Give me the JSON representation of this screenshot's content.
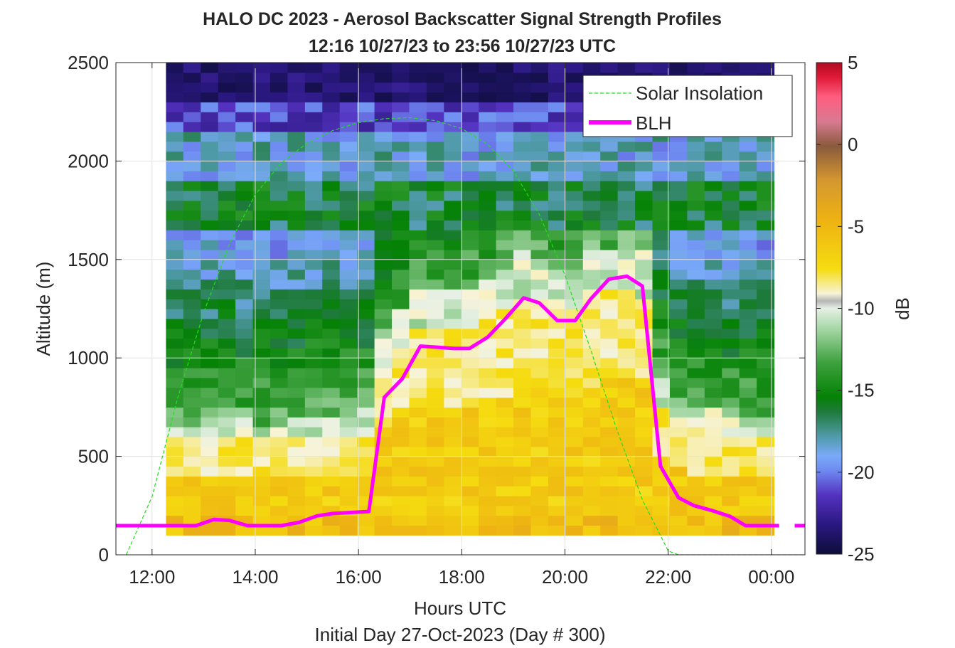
{
  "chart_data": {
    "type": "heatmap",
    "title": "HALO DC 2023 - Aerosol Backscatter Signal Strength Profiles",
    "subtitle": "12:16 10/27/23 to 23:56 10/27/23  UTC",
    "xlabel": "Hours UTC",
    "footnote": "Initial Day 27-Oct-2023 (Day # 300)",
    "ylabel": "Altitude (m)",
    "colorbar_label": "dB",
    "xlim": [
      11.3,
      24.65
    ],
    "ylim": [
      0,
      2500
    ],
    "x_ticks": [
      12,
      14,
      16,
      18,
      20,
      22,
      24
    ],
    "x_tick_labels": [
      "12:00",
      "14:00",
      "16:00",
      "18:00",
      "20:00",
      "22:00",
      "00:00"
    ],
    "y_ticks": [
      0,
      500,
      1000,
      1500,
      2000,
      2500
    ],
    "y_tick_labels": [
      "0",
      "500",
      "1000",
      "1500",
      "2000",
      "2500"
    ],
    "colorbar_ticks": [
      5,
      0,
      -5,
      -10,
      -15,
      -20,
      -25
    ],
    "colorbar_range": [
      -25,
      5
    ],
    "grid": true,
    "legend_position": "top-right",
    "heatmap": {
      "x_start": 12.27,
      "x_step": 0.3366,
      "y_start": 100,
      "y_step": 50,
      "rows_bottom_to_top": 48,
      "note": "signal strength (dB) per time/altitude cell"
    },
    "series": [
      {
        "name": "Solar Insolation",
        "style": "dashed",
        "color": "#22dd22",
        "x": [
          11.5,
          12.0,
          12.5,
          13.0,
          13.5,
          14.0,
          14.5,
          15.0,
          15.5,
          16.0,
          16.5,
          17.0,
          17.5,
          18.0,
          18.5,
          19.0,
          19.5,
          20.0,
          20.5,
          21.0,
          21.5,
          22.0,
          22.2,
          22.5,
          23.0,
          23.5,
          24.0,
          24.65
        ],
        "y": [
          0,
          295,
          800,
          1230,
          1580,
          1830,
          1990,
          2090,
          2155,
          2195,
          2215,
          2220,
          2205,
          2165,
          2085,
          1950,
          1730,
          1420,
          1040,
          640,
          280,
          20,
          0,
          0,
          0,
          0,
          0,
          0
        ]
      },
      {
        "name": "BLH",
        "style": "solid",
        "color": "#ff00ff",
        "x": [
          11.3,
          12.0,
          12.5,
          12.85,
          13.2,
          13.5,
          13.85,
          14.2,
          14.5,
          14.85,
          15.2,
          15.5,
          15.85,
          16.2,
          16.5,
          16.85,
          17.2,
          17.5,
          17.85,
          18.15,
          18.5,
          18.85,
          19.2,
          19.5,
          19.85,
          20.2,
          20.5,
          20.85,
          21.2,
          21.5,
          21.85,
          22.2,
          22.5,
          22.85,
          23.2,
          23.5,
          23.85,
          24.15
        ],
        "y": [
          148,
          148,
          148,
          148,
          180,
          175,
          148,
          148,
          148,
          165,
          198,
          210,
          215,
          220,
          800,
          895,
          1060,
          1055,
          1048,
          1048,
          1105,
          1200,
          1305,
          1280,
          1190,
          1190,
          1300,
          1400,
          1415,
          1365,
          450,
          290,
          250,
          225,
          195,
          148,
          148,
          148
        ]
      },
      {
        "name": "",
        "style": "solid",
        "color": "#ff00ff",
        "x": [
          24.45,
          24.65
        ],
        "y": [
          148,
          148
        ]
      }
    ]
  }
}
